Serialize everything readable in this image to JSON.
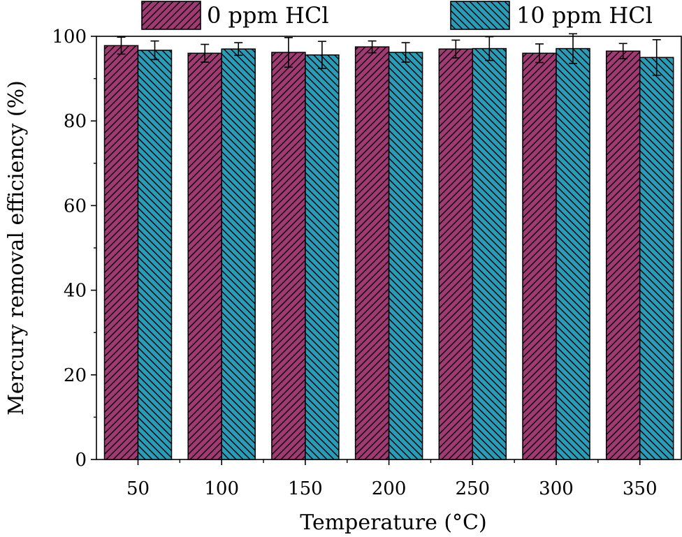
{
  "chart_data": {
    "type": "bar",
    "xlabel": "Temperature (°C)",
    "ylabel": "Mercury removal efficiency (%)",
    "ylim": [
      0,
      100
    ],
    "yticks": [
      0,
      20,
      40,
      60,
      80,
      100
    ],
    "categories": [
      "50",
      "100",
      "150",
      "200",
      "250",
      "300",
      "350"
    ],
    "series": [
      {
        "name": "0 ppm HCl",
        "color": "#A03A72",
        "hatch": "forward",
        "values": [
          97.8,
          96.0,
          96.2,
          97.5,
          97.0,
          96.0,
          96.5
        ],
        "errors": [
          2.0,
          2.1,
          3.5,
          1.4,
          2.1,
          2.2,
          1.8
        ]
      },
      {
        "name": "10 ppm HCl",
        "color": "#2B9CB8",
        "hatch": "backward",
        "values": [
          96.7,
          97.0,
          95.6,
          96.2,
          97.1,
          97.1,
          95.0
        ],
        "errors": [
          2.2,
          1.5,
          3.2,
          2.3,
          2.8,
          3.5,
          4.2
        ]
      }
    ],
    "legend_position": "top"
  }
}
